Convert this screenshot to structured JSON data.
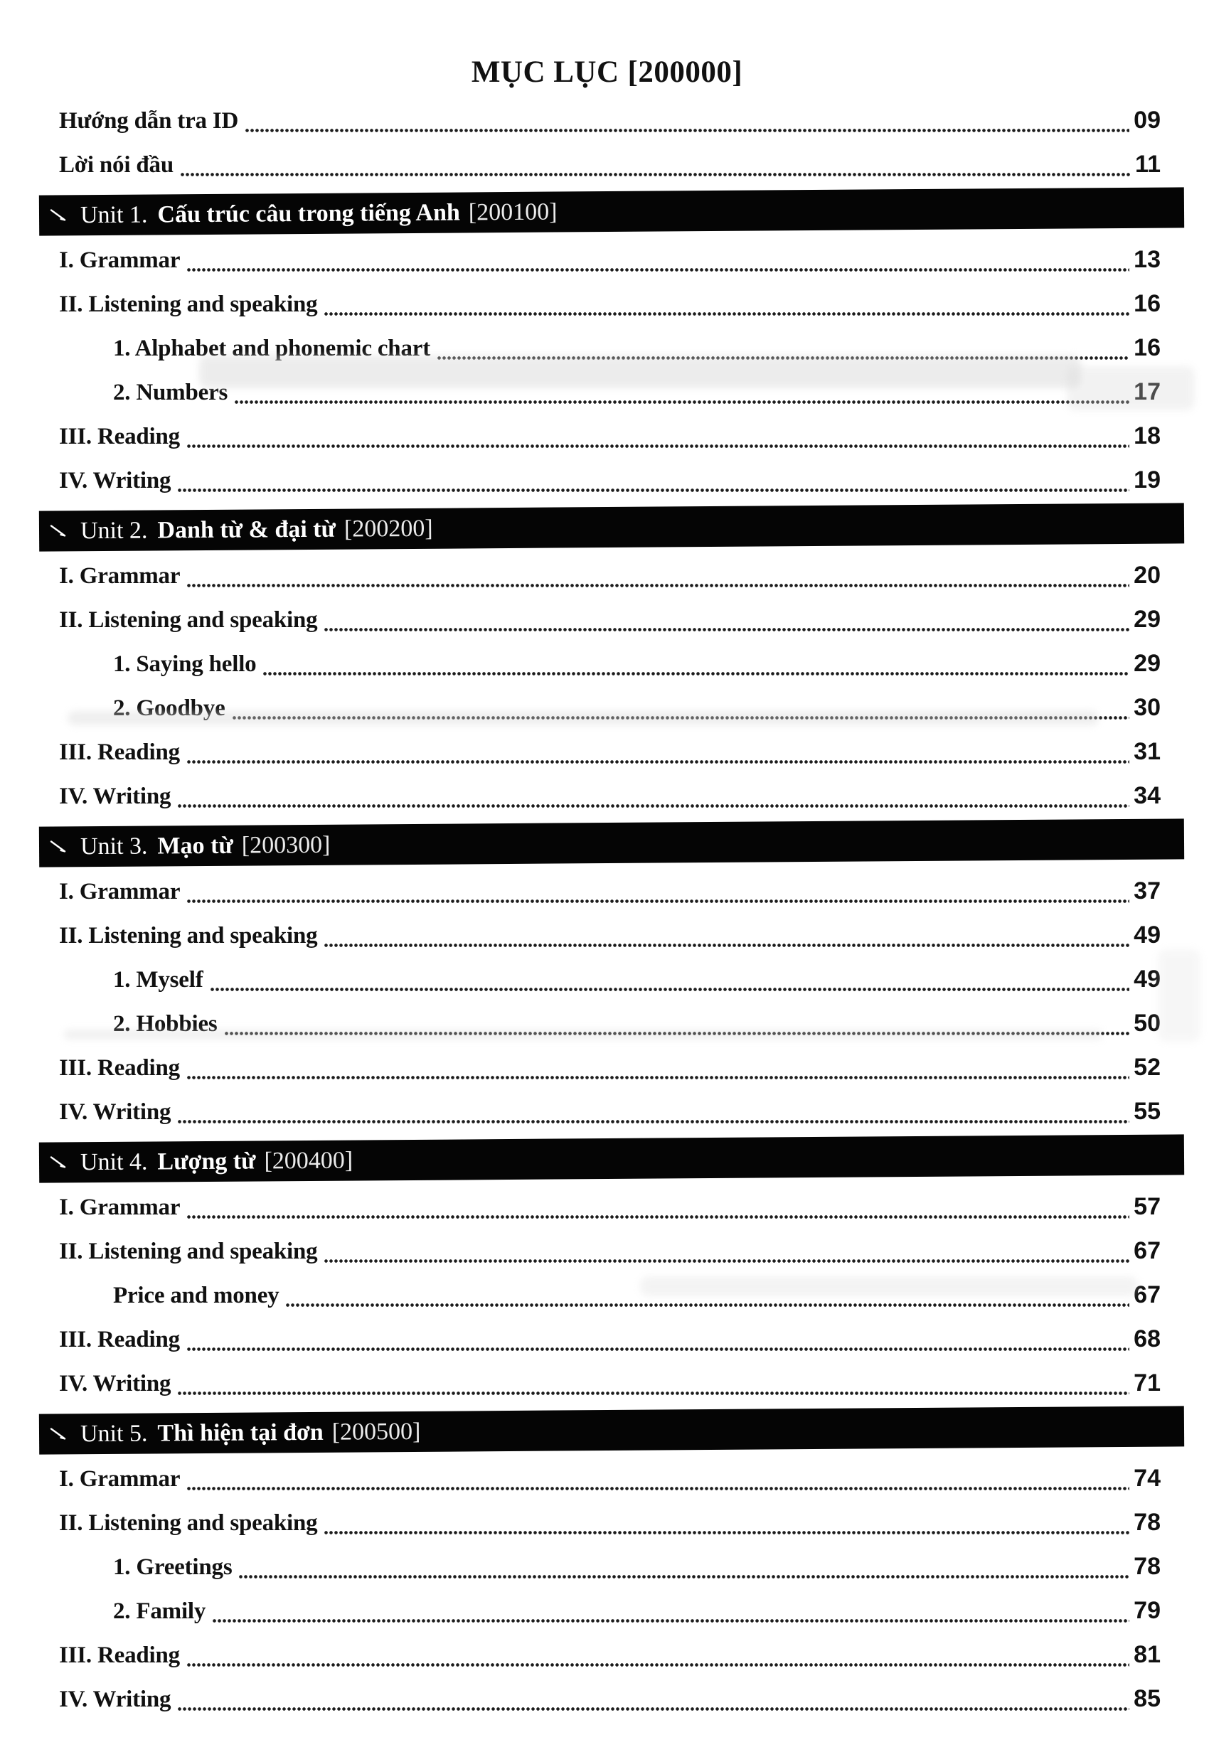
{
  "page": {
    "title_main": "MỤC LỤC",
    "title_code": "[200000]"
  },
  "front_matter": [
    {
      "label": "Hướng dẫn tra ID",
      "page": "09",
      "level": 1
    },
    {
      "label": "Lời nói đầu",
      "page": "11",
      "level": 1
    }
  ],
  "units": [
    {
      "unit_label": "Unit 1.",
      "unit_title": "Cấu trúc câu trong tiếng Anh",
      "unit_code": "[200100]",
      "entries": [
        {
          "label": "I. Grammar",
          "page": "13",
          "level": 1
        },
        {
          "label": "II. Listening and speaking",
          "page": "16",
          "level": 1
        },
        {
          "label": "1. Alphabet and phonemic chart",
          "page": "16",
          "level": 2
        },
        {
          "label": "2. Numbers",
          "page": "17",
          "level": 2
        },
        {
          "label": "III. Reading",
          "page": "18",
          "level": 1
        },
        {
          "label": "IV. Writing",
          "page": "19",
          "level": 1
        }
      ]
    },
    {
      "unit_label": "Unit 2.",
      "unit_title": "Danh từ & đại từ",
      "unit_code": "[200200]",
      "entries": [
        {
          "label": "I. Grammar",
          "page": "20",
          "level": 1
        },
        {
          "label": "II. Listening and speaking",
          "page": "29",
          "level": 1
        },
        {
          "label": "1. Saying hello",
          "page": "29",
          "level": 2
        },
        {
          "label": "2. Goodbye",
          "page": "30",
          "level": 2
        },
        {
          "label": "III. Reading",
          "page": "31",
          "level": 1
        },
        {
          "label": "IV. Writing",
          "page": "34",
          "level": 1
        }
      ]
    },
    {
      "unit_label": "Unit 3.",
      "unit_title": "Mạo từ",
      "unit_code": "[200300]",
      "entries": [
        {
          "label": "I. Grammar",
          "page": "37",
          "level": 1
        },
        {
          "label": "II. Listening and speaking",
          "page": "49",
          "level": 1
        },
        {
          "label": "1. Myself",
          "page": "49",
          "level": 2
        },
        {
          "label": "2. Hobbies",
          "page": "50",
          "level": 2
        },
        {
          "label": "III. Reading",
          "page": "52",
          "level": 1
        },
        {
          "label": "IV. Writing",
          "page": "55",
          "level": 1
        }
      ]
    },
    {
      "unit_label": "Unit 4.",
      "unit_title": "Lượng từ",
      "unit_code": "[200400]",
      "entries": [
        {
          "label": "I. Grammar",
          "page": "57",
          "level": 1
        },
        {
          "label": "II. Listening and speaking",
          "page": "67",
          "level": 1
        },
        {
          "label": "Price and money",
          "page": "67",
          "level": 2
        },
        {
          "label": "III. Reading",
          "page": "68",
          "level": 1
        },
        {
          "label": "IV. Writing",
          "page": "71",
          "level": 1
        }
      ]
    },
    {
      "unit_label": "Unit 5.",
      "unit_title": "Thì hiện tại đơn",
      "unit_code": "[200500]",
      "entries": [
        {
          "label": "I. Grammar",
          "page": "74",
          "level": 1
        },
        {
          "label": "II. Listening and speaking",
          "page": "78",
          "level": 1
        },
        {
          "label": "1. Greetings",
          "page": "78",
          "level": 2
        },
        {
          "label": "2. Family",
          "page": "79",
          "level": 2
        },
        {
          "label": "III. Reading",
          "page": "81",
          "level": 1
        },
        {
          "label": "IV. Writing",
          "page": "85",
          "level": 1
        }
      ]
    }
  ]
}
